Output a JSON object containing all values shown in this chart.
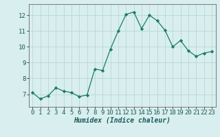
{
  "x": [
    0,
    1,
    2,
    3,
    4,
    5,
    6,
    7,
    8,
    9,
    10,
    11,
    12,
    13,
    14,
    15,
    16,
    17,
    18,
    19,
    20,
    21,
    22,
    23
  ],
  "y": [
    7.1,
    6.7,
    6.9,
    7.4,
    7.2,
    7.1,
    6.85,
    6.95,
    8.6,
    8.5,
    9.85,
    11.0,
    12.05,
    12.2,
    11.15,
    12.0,
    11.65,
    11.05,
    10.0,
    10.4,
    9.75,
    9.4,
    9.6,
    9.7
  ],
  "line_color": "#1a7a6e",
  "marker": "D",
  "marker_size": 2.2,
  "bg_color": "#d9eeee",
  "grid_color": "#b8d8d8",
  "xlabel": "Humidex (Indice chaleur)",
  "xlim": [
    -0.5,
    23.5
  ],
  "ylim": [
    6.2,
    12.7
  ],
  "yticks": [
    7,
    8,
    9,
    10,
    11,
    12
  ],
  "xticks": [
    0,
    1,
    2,
    3,
    4,
    5,
    6,
    7,
    8,
    9,
    10,
    11,
    12,
    13,
    14,
    15,
    16,
    17,
    18,
    19,
    20,
    21,
    22,
    23
  ],
  "font_size": 6.5
}
